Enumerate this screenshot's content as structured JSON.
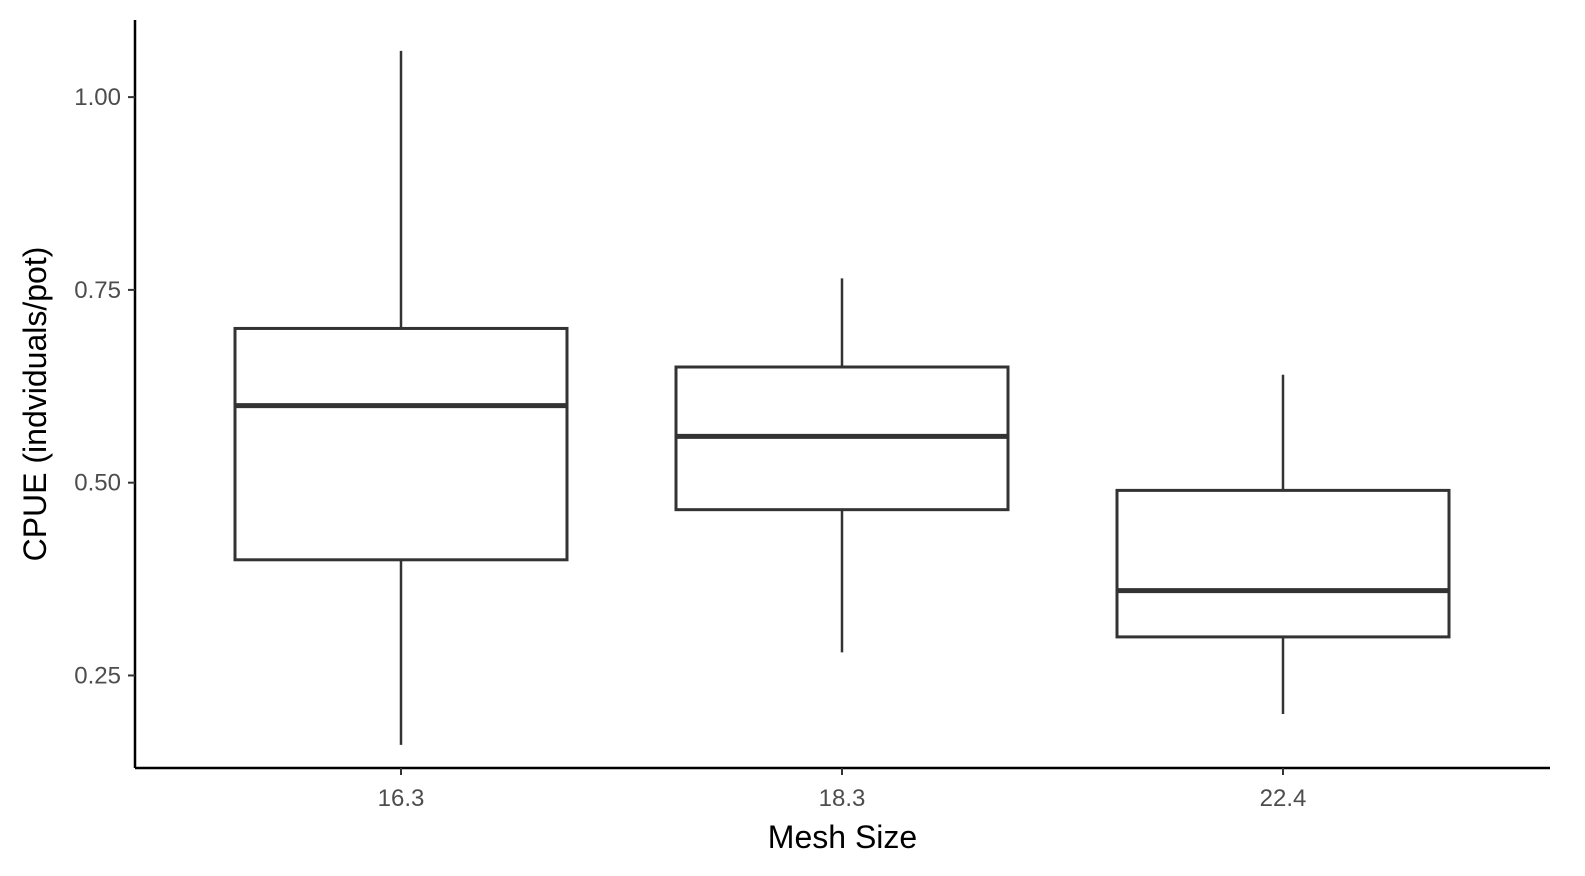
{
  "chart_data": {
    "type": "boxplot",
    "title": "",
    "xlabel": "Mesh Size",
    "ylabel": "CPUE (indviduals/pot)",
    "ylim": [
      0.13,
      1.1
    ],
    "yticks": [
      0.25,
      0.5,
      0.75,
      1.0
    ],
    "ytick_labels": [
      "0.25",
      "0.50",
      "0.75",
      "1.00"
    ],
    "grid": false,
    "legend": "none",
    "categories": [
      "16.3",
      "18.3",
      "22.4"
    ],
    "boxes": [
      {
        "category": "16.3",
        "min": 0.16,
        "q1": 0.4,
        "median": 0.6,
        "q3": 0.7,
        "max": 1.06
      },
      {
        "category": "18.3",
        "min": 0.28,
        "q1": 0.465,
        "median": 0.56,
        "q3": 0.65,
        "max": 0.765
      },
      {
        "category": "22.4",
        "min": 0.2,
        "q1": 0.3,
        "median": 0.36,
        "q3": 0.49,
        "max": 0.64
      }
    ],
    "colors": {
      "box_fill": "#ffffff",
      "box_stroke": "#333333",
      "axis": "#000000"
    }
  }
}
